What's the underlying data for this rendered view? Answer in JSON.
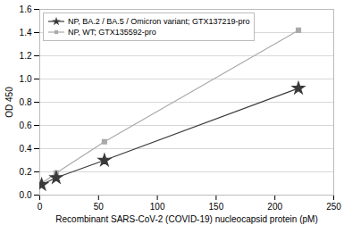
{
  "chart_data": {
    "type": "line",
    "xlabel": "Recombinant SARS-CoV-2 (COVID-19) nucleocapsid protein (pM)",
    "ylabel": "OD 450",
    "x": [
      1.6,
      14,
      55,
      220
    ],
    "series": [
      {
        "name": "NP, BA.2 / BA.5 / Omicron variant; GTX137219-pro",
        "color": "#3a3a3a",
        "marker": "star",
        "values": [
          0.09,
          0.15,
          0.3,
          0.92
        ]
      },
      {
        "name": "NP, WT; GTX135592-pro",
        "color": "#aaaaaa",
        "marker": "square",
        "values": [
          0.1,
          0.19,
          0.46,
          1.42
        ]
      }
    ],
    "xlim": [
      0,
      250
    ],
    "ylim": [
      0,
      1.6
    ],
    "xticks": [
      0,
      50,
      100,
      150,
      200,
      250
    ],
    "yticks": [
      {
        "value": 0,
        "label": "0.0"
      },
      0.2,
      0.4,
      0.6,
      0.8,
      {
        "value": 1.0,
        "label": "1.0"
      },
      1.2,
      1.4,
      1.6
    ],
    "grid": "y",
    "legend": "upper left"
  }
}
